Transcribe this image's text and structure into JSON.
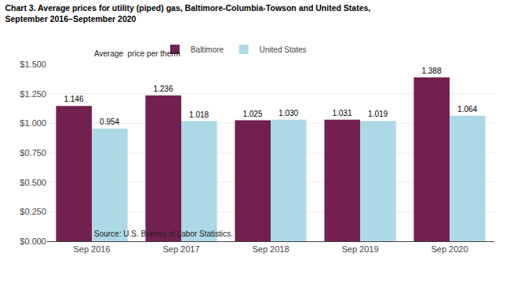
{
  "chart_data": {
    "type": "bar",
    "title": "Chart 3. Average prices for utility (piped) gas, Baltimore-Columbia-Towson and United States,",
    "subtitle": "September 2016–September 2020",
    "ylabel": "Average  price per therm",
    "annotations": [
      "Source: U.S. Bureau of Labor Statistics."
    ],
    "categories": [
      "Sep 2016",
      "Sep 2017",
      "Sep 2018",
      "Sep 2019",
      "Sep 2020"
    ],
    "series": [
      {
        "name": "Baltimore",
        "color": "#722050",
        "values": [
          1.146,
          1.236,
          1.025,
          1.031,
          1.388
        ],
        "value_labels": [
          "1.146",
          "1.236",
          "1.025",
          "1.031",
          "1.388"
        ]
      },
      {
        "name": "United States",
        "color": "#ADD8E6",
        "values": [
          0.954,
          1.018,
          1.03,
          1.019,
          1.064
        ],
        "value_labels": [
          "0.954",
          "1.018",
          "1.030",
          "1.019",
          "1.064"
        ]
      }
    ],
    "ylim": [
      0,
      1.5
    ],
    "yticks": [
      {
        "value": 0,
        "label": "$0.000"
      },
      {
        "value": 0.25,
        "label": "$0.250"
      },
      {
        "value": 0.5,
        "label": "$0.500"
      },
      {
        "value": 0.75,
        "label": "$0.750"
      },
      {
        "value": 1.0,
        "label": "$1.000"
      },
      {
        "value": 1.25,
        "label": "$1.250"
      },
      {
        "value": 1.5,
        "label": "$1.500"
      }
    ],
    "grid": true,
    "legend": "top",
    "data_labels": true
  }
}
